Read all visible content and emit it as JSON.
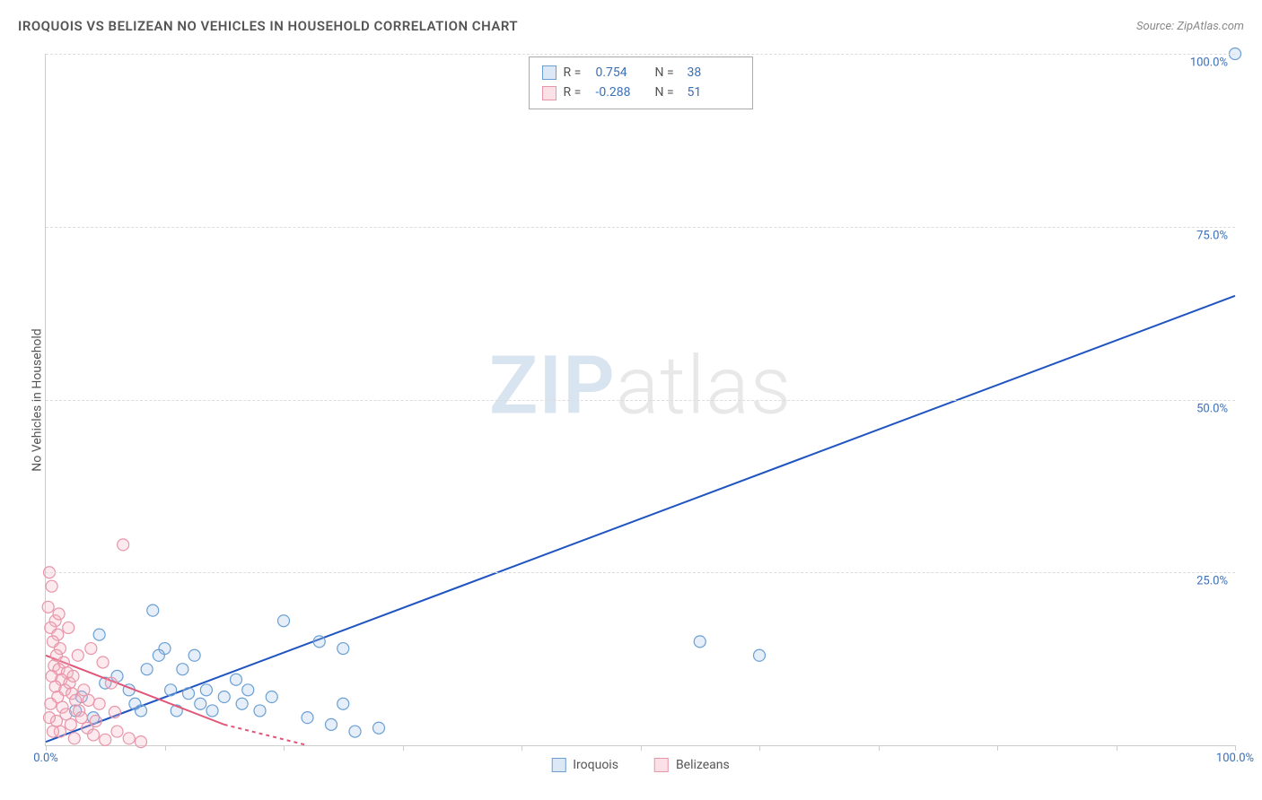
{
  "title": "IROQUOIS VS BELIZEAN NO VEHICLES IN HOUSEHOLD CORRELATION CHART",
  "source": "Source: ZipAtlas.com",
  "y_axis_label": "No Vehicles in Household",
  "watermark": {
    "bold": "ZIP",
    "light": "atlas"
  },
  "chart": {
    "type": "scatter",
    "xlim": [
      0,
      100
    ],
    "ylim": [
      0,
      100
    ],
    "y_ticks": [
      25,
      50,
      75,
      100
    ],
    "y_tick_labels": [
      "25.0%",
      "50.0%",
      "75.0%",
      "100.0%"
    ],
    "x_ticks": [
      0,
      10,
      20,
      30,
      40,
      50,
      60,
      70,
      80,
      90,
      100
    ],
    "x_tick_labels_shown": {
      "0": "0.0%",
      "100": "100.0%"
    },
    "grid_color": "#dddddd",
    "axis_color": "#cccccc",
    "background_color": "#ffffff",
    "label_color": "#3b6fb6",
    "marker_radius": 6.5,
    "marker_stroke_width": 1.2,
    "marker_fill_opacity": 0.28
  },
  "series": [
    {
      "name": "Iroquois",
      "color_stroke": "#6a9fd4",
      "color_fill": "#a7c6e8",
      "trend": {
        "color": "#1f55c2",
        "width": 2,
        "x1": 0,
        "y1": 0.5,
        "x2": 100,
        "y2": 65,
        "dash": "none"
      },
      "stats": {
        "R": "0.754",
        "N": "38"
      },
      "points": [
        [
          100,
          100
        ],
        [
          55,
          15
        ],
        [
          60,
          13
        ],
        [
          20,
          18
        ],
        [
          9,
          19.5
        ],
        [
          3,
          7
        ],
        [
          4,
          4
        ],
        [
          5,
          9
        ],
        [
          6,
          10
        ],
        [
          7,
          8
        ],
        [
          7.5,
          6
        ],
        [
          8,
          5
        ],
        [
          8.5,
          11
        ],
        [
          10,
          14
        ],
        [
          10.5,
          8
        ],
        [
          11,
          5
        ],
        [
          11.5,
          11
        ],
        [
          12,
          7.5
        ],
        [
          12.5,
          13
        ],
        [
          13,
          6
        ],
        [
          13.5,
          8
        ],
        [
          14,
          5
        ],
        [
          15,
          7
        ],
        [
          16,
          9.5
        ],
        [
          16.5,
          6
        ],
        [
          18,
          5
        ],
        [
          17,
          8
        ],
        [
          19,
          7
        ],
        [
          22,
          4
        ],
        [
          24,
          3
        ],
        [
          23,
          15
        ],
        [
          25,
          14
        ],
        [
          26,
          2
        ],
        [
          28,
          2.5
        ],
        [
          25,
          6
        ],
        [
          9.5,
          13
        ],
        [
          2.5,
          5
        ],
        [
          4.5,
          16
        ]
      ]
    },
    {
      "name": "Belizeans",
      "color_stroke": "#e895a8",
      "color_fill": "#f4b3c2",
      "trend": {
        "color": "#e15577",
        "width": 2,
        "x1": 0,
        "y1": 13,
        "x2": 15,
        "y2": 3,
        "dash": "none",
        "dash_ext": {
          "x1": 15,
          "y1": 3,
          "x2": 22,
          "y2": 0,
          "dash": "4 4"
        }
      },
      "stats": {
        "R": "-0.288",
        "N": "51"
      },
      "points": [
        [
          0.3,
          25
        ],
        [
          0.5,
          23
        ],
        [
          0.2,
          20
        ],
        [
          0.8,
          18
        ],
        [
          0.4,
          17
        ],
        [
          1,
          16
        ],
        [
          0.6,
          15
        ],
        [
          1.2,
          14
        ],
        [
          0.9,
          13
        ],
        [
          1.5,
          12
        ],
        [
          0.7,
          11.5
        ],
        [
          1.1,
          11
        ],
        [
          1.8,
          10.5
        ],
        [
          0.5,
          10
        ],
        [
          1.3,
          9.5
        ],
        [
          2,
          9
        ],
        [
          0.8,
          8.5
        ],
        [
          1.6,
          8
        ],
        [
          2.2,
          7.5
        ],
        [
          1,
          7
        ],
        [
          2.5,
          6.5
        ],
        [
          0.4,
          6
        ],
        [
          1.4,
          5.5
        ],
        [
          2.8,
          5
        ],
        [
          1.7,
          4.5
        ],
        [
          3,
          4
        ],
        [
          0.9,
          3.5
        ],
        [
          2.1,
          3
        ],
        [
          3.5,
          2.5
        ],
        [
          1.2,
          2
        ],
        [
          4,
          1.5
        ],
        [
          2.4,
          1
        ],
        [
          5,
          0.8
        ],
        [
          3.2,
          8
        ],
        [
          4.5,
          6
        ],
        [
          6,
          2
        ],
        [
          7,
          1
        ],
        [
          5.5,
          9
        ],
        [
          8,
          0.5
        ],
        [
          4.8,
          12
        ],
        [
          3.8,
          14
        ],
        [
          2.7,
          13
        ],
        [
          6.5,
          29
        ],
        [
          1.9,
          17
        ],
        [
          0.3,
          4
        ],
        [
          0.6,
          2
        ],
        [
          1.1,
          19
        ],
        [
          2.3,
          10
        ],
        [
          3.6,
          6.5
        ],
        [
          4.2,
          3.5
        ],
        [
          5.8,
          4.8
        ]
      ]
    }
  ],
  "bottom_legend": [
    {
      "label": "Iroquois",
      "stroke": "#6a9fd4",
      "fill": "#a7c6e8"
    },
    {
      "label": "Belizeans",
      "stroke": "#e895a8",
      "fill": "#f4b3c2"
    }
  ]
}
